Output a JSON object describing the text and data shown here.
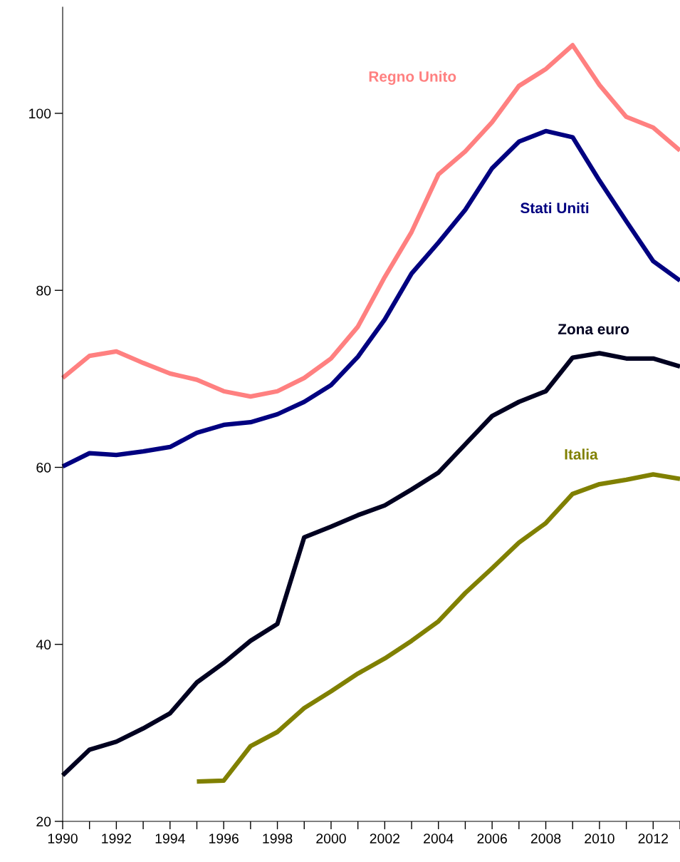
{
  "chart_data": {
    "type": "line",
    "x": [
      1990,
      1991,
      1992,
      1993,
      1994,
      1995,
      1996,
      1997,
      1998,
      1999,
      2000,
      2001,
      2002,
      2003,
      2004,
      2005,
      2006,
      2007,
      2008,
      2009,
      2010,
      2011,
      2012,
      2013
    ],
    "series": [
      {
        "name": "Regno Unito",
        "color": "#ff8080",
        "values": [
          70.1,
          72.6,
          73.1,
          71.8,
          70.6,
          69.9,
          68.6,
          68.0,
          68.6,
          70.1,
          72.3,
          75.9,
          81.5,
          86.6,
          93.1,
          95.7,
          99.0,
          103.1,
          105.0,
          107.7,
          103.2,
          99.6,
          98.4,
          95.8
        ]
      },
      {
        "name": "Stati Uniti",
        "color": "#000080",
        "values": [
          60.1,
          61.6,
          61.4,
          61.8,
          62.3,
          63.9,
          64.8,
          65.1,
          66.0,
          67.4,
          69.3,
          72.5,
          76.7,
          81.9,
          85.4,
          89.1,
          93.8,
          96.8,
          98.0,
          97.3,
          92.4,
          87.8,
          83.3,
          81.1
        ]
      },
      {
        "name": "Zona euro",
        "color": "#000020",
        "values": [
          25.2,
          28.1,
          29.0,
          30.5,
          32.2,
          35.7,
          37.9,
          40.4,
          42.3,
          52.1,
          53.3,
          54.6,
          55.7,
          57.5,
          59.4,
          62.6,
          65.8,
          67.4,
          68.6,
          72.4,
          72.9,
          72.3,
          72.3,
          71.4
        ]
      },
      {
        "name": "Italia",
        "color": "#808000",
        "values": [
          null,
          null,
          null,
          null,
          null,
          24.5,
          24.6,
          28.5,
          30.1,
          32.8,
          34.7,
          36.7,
          38.4,
          40.4,
          42.6,
          45.8,
          48.6,
          51.5,
          53.7,
          57.0,
          58.1,
          58.6,
          59.2,
          58.7
        ]
      }
    ],
    "xlim": [
      1990,
      2013
    ],
    "xticks": [
      1990,
      {
        "value": 1991,
        "label": null
      },
      1992,
      {
        "value": 1993,
        "label": null
      },
      1994,
      {
        "value": 1995,
        "label": null
      },
      1996,
      {
        "value": 1997,
        "label": null
      },
      1998,
      {
        "value": 1999,
        "label": null
      },
      2000,
      {
        "value": 2001,
        "label": null
      },
      2002,
      {
        "value": 2003,
        "label": null
      },
      2004,
      {
        "value": 2005,
        "label": null
      },
      2006,
      {
        "value": 2007,
        "label": null
      },
      2008,
      {
        "value": 2009,
        "label": null
      },
      2010,
      {
        "value": 2011,
        "label": null
      },
      2012,
      {
        "value": 2013,
        "label": null
      }
    ],
    "ylim": [
      20,
      112
    ],
    "yticks": [
      20,
      40,
      60,
      80,
      100
    ],
    "grid": false,
    "legend": false,
    "marker": "none",
    "line_style": "solid"
  }
}
